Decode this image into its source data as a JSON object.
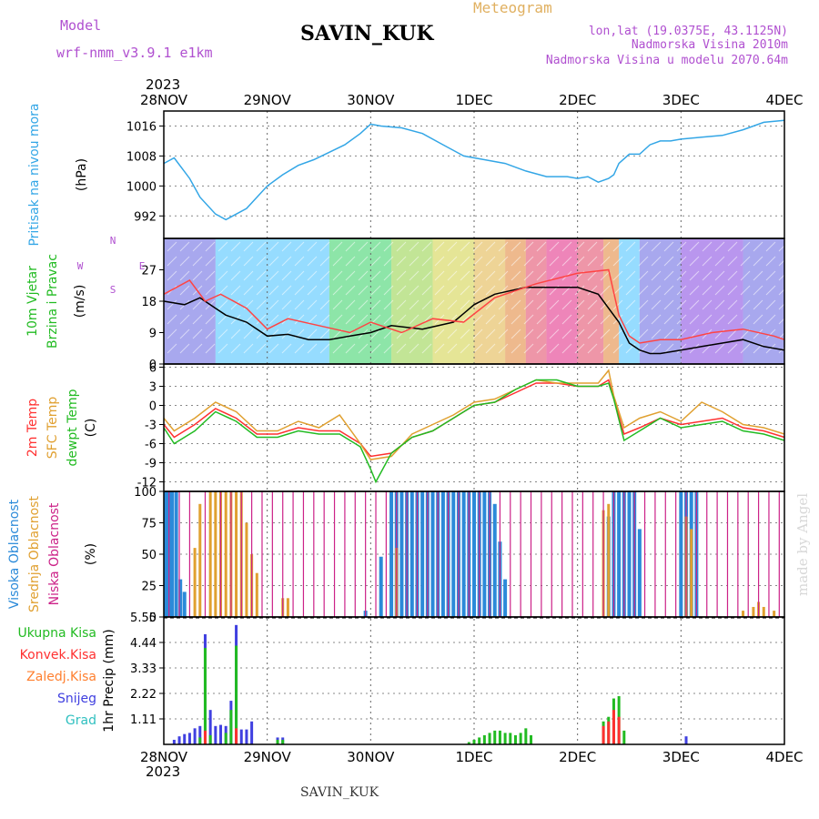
{
  "header": {
    "model_label": "Model",
    "model_name": "wrf-nmm_v3.9.1  e1km",
    "station": "SAVIN_KUK",
    "meteogram": "Meteogram",
    "lonlat": "lon,lat (19.0375E, 43.1125N)",
    "elevation": "Nadmorska Visina 2010m",
    "model_elevation": "Nadmorska Visina u modelu 2070.64m",
    "year": "2023",
    "footer_station": "SAVIN_KUK",
    "watermark": "made by Angel"
  },
  "colors": {
    "pressure": "#33a6e6",
    "wind_speed": "#000000",
    "wind_gust": "#ff4444",
    "temp_2m": "#ff3030",
    "temp_sfc": "#e0a030",
    "dewpoint": "#22bb22",
    "cloud_high": "#2b8ad9",
    "cloud_mid": "#e0a030",
    "cloud_low": "#cc2288",
    "precip_total": "#22bb22",
    "precip_conv": "#ff3030",
    "precip_freezing": "#ff8030",
    "precip_snow": "#4040e0",
    "precip_graupel": "#30c0c0"
  },
  "chart_data": [
    {
      "type": "line",
      "panel": "pressure",
      "ylabel_parts": [
        "Pritisak na nivou mora",
        "(hPa)"
      ],
      "x_ticks": [
        "28NOV",
        "29NOV",
        "30NOV",
        "1DEC",
        "2DEC",
        "3DEC",
        "4DEC"
      ],
      "x_range_days": [
        0,
        6
      ],
      "yticks": [
        "992",
        "1000",
        "1008",
        "1016"
      ],
      "ylim": [
        986,
        1020
      ],
      "series": [
        {
          "key": "pressure",
          "x": [
            0,
            0.1,
            0.25,
            0.35,
            0.5,
            0.6,
            0.8,
            1.0,
            1.15,
            1.3,
            1.45,
            1.6,
            1.75,
            1.9,
            2.0,
            2.1,
            2.3,
            2.5,
            2.7,
            2.9,
            3.1,
            3.3,
            3.5,
            3.7,
            3.9,
            4.0,
            4.1,
            4.2,
            4.3,
            4.35,
            4.4,
            4.5,
            4.6,
            4.7,
            4.8,
            4.9,
            5.0,
            5.2,
            5.4,
            5.6,
            5.8,
            6.0
          ],
          "values": [
            1006,
            1007.5,
            1002,
            997,
            992.5,
            991,
            994,
            1000,
            1003,
            1005.5,
            1007,
            1009,
            1011,
            1014,
            1016.5,
            1016,
            1015.5,
            1014,
            1011,
            1008,
            1007,
            1006,
            1004,
            1002.5,
            1002.5,
            1002,
            1002.5,
            1001,
            1002,
            1003,
            1006,
            1008.5,
            1008.5,
            1011,
            1012,
            1012,
            1012.5,
            1013,
            1013.5,
            1015,
            1017,
            1017.5
          ]
        }
      ]
    },
    {
      "type": "line",
      "panel": "wind",
      "ylabel_parts": [
        "10m Vjetar",
        "Brzina i Pravac",
        "(m/s)"
      ],
      "compass": [
        "N",
        "W",
        "E",
        "S"
      ],
      "yticks": [
        "0",
        "9",
        "18",
        "27"
      ],
      "ylim": [
        0,
        36
      ],
      "series": [
        {
          "key": "wind_speed",
          "x": [
            0,
            0.2,
            0.35,
            0.5,
            0.6,
            0.8,
            1.0,
            1.2,
            1.4,
            1.6,
            1.8,
            2.0,
            2.2,
            2.5,
            2.8,
            3.0,
            3.2,
            3.5,
            3.8,
            4.0,
            4.2,
            4.4,
            4.5,
            4.6,
            4.7,
            4.8,
            5.0,
            5.2,
            5.4,
            5.6,
            5.8,
            6.0
          ],
          "values": [
            18,
            17,
            19,
            16,
            14,
            12,
            8,
            8.5,
            7,
            7,
            8,
            9,
            11,
            10,
            12,
            17,
            20,
            22,
            22,
            22,
            20,
            12,
            6,
            4,
            3,
            3,
            4,
            5,
            6,
            7,
            5,
            4
          ]
        },
        {
          "key": "wind_gust",
          "x": [
            0,
            0.25,
            0.4,
            0.55,
            0.8,
            1.0,
            1.2,
            1.5,
            1.8,
            2.0,
            2.3,
            2.6,
            2.9,
            3.2,
            3.6,
            4.0,
            4.3,
            4.4,
            4.5,
            4.6,
            4.8,
            5.0,
            5.3,
            5.6,
            5.9,
            6.0
          ],
          "values": [
            20,
            24,
            18,
            20,
            16,
            10,
            13,
            11,
            9,
            12,
            9,
            13,
            12,
            19,
            23,
            26,
            27,
            14,
            8,
            6,
            7,
            7,
            9,
            10,
            8,
            7
          ]
        }
      ]
    },
    {
      "type": "line",
      "panel": "temperature",
      "ylabel_parts": [
        "2m Temp",
        "SFC Temp",
        "dewpt Temp",
        "(C)"
      ],
      "yticks": [
        "-12",
        "-9",
        "-6",
        "-3",
        "0",
        "3",
        "6"
      ],
      "ylim": [
        -13.5,
        6.5
      ],
      "series": [
        {
          "key": "temp_2m",
          "name": "2m Temp",
          "x": [
            0,
            0.1,
            0.3,
            0.5,
            0.7,
            0.9,
            1.1,
            1.3,
            1.5,
            1.7,
            1.9,
            2.0,
            2.2,
            2.4,
            2.6,
            2.8,
            3.0,
            3.2,
            3.4,
            3.6,
            3.8,
            4.0,
            4.2,
            4.3,
            4.35,
            4.45,
            4.6,
            4.8,
            5.0,
            5.2,
            5.4,
            5.6,
            5.8,
            6.0
          ],
          "values": [
            -3,
            -5,
            -3,
            -0.5,
            -2,
            -4.5,
            -4.5,
            -3.5,
            -4,
            -4,
            -6,
            -8,
            -7.5,
            -5,
            -4,
            -2,
            0,
            0.5,
            2,
            3.5,
            3.5,
            3,
            3,
            4,
            1,
            -4.5,
            -3.5,
            -2,
            -3,
            -2.5,
            -2,
            -3.5,
            -4,
            -5
          ]
        },
        {
          "key": "temp_sfc",
          "name": "SFC Temp",
          "x": [
            0,
            0.1,
            0.3,
            0.5,
            0.7,
            0.9,
            1.1,
            1.3,
            1.5,
            1.7,
            1.9,
            2.0,
            2.2,
            2.4,
            2.6,
            2.8,
            3.0,
            3.2,
            3.4,
            3.6,
            3.8,
            4.0,
            4.2,
            4.3,
            4.35,
            4.45,
            4.6,
            4.8,
            5.0,
            5.2,
            5.4,
            5.6,
            5.8,
            6.0
          ],
          "values": [
            -2,
            -4,
            -2,
            0.5,
            -1,
            -4,
            -4,
            -2.5,
            -3.5,
            -1.5,
            -6,
            -8.5,
            -8,
            -4.5,
            -3,
            -1.5,
            0.5,
            1,
            2.5,
            4,
            3.5,
            3.5,
            3.5,
            5.5,
            1.5,
            -3.5,
            -2,
            -1,
            -2.5,
            0.5,
            -1,
            -3,
            -3.5,
            -4.5
          ]
        },
        {
          "key": "dewpoint",
          "name": "dewpt Temp",
          "x": [
            0,
            0.1,
            0.3,
            0.5,
            0.7,
            0.9,
            1.1,
            1.3,
            1.5,
            1.7,
            1.9,
            2.0,
            2.05,
            2.2,
            2.4,
            2.6,
            2.8,
            3.0,
            3.2,
            3.4,
            3.6,
            3.8,
            4.0,
            4.2,
            4.3,
            4.35,
            4.45,
            4.6,
            4.8,
            5.0,
            5.2,
            5.4,
            5.6,
            5.8,
            6.0
          ],
          "values": [
            -3.5,
            -6,
            -4,
            -1,
            -2.5,
            -5,
            -5,
            -4,
            -4.5,
            -4.5,
            -6.5,
            -10,
            -12,
            -7.5,
            -5,
            -4,
            -2,
            0,
            0.5,
            2.5,
            4,
            4,
            3,
            3,
            3.5,
            1,
            -5.5,
            -4,
            -2,
            -3.5,
            -3,
            -2.5,
            -4,
            -4.5,
            -5.5
          ]
        }
      ]
    },
    {
      "type": "bar",
      "panel": "clouds",
      "ylabel_parts": [
        "Visoka Oblacnost",
        "Srednja Oblacnost",
        "Niska Oblacnost",
        "(%)"
      ],
      "yticks": [
        "0",
        "25",
        "50",
        "75",
        "100"
      ],
      "ylim": [
        0,
        100
      ],
      "series": [
        {
          "key": "cloud_high",
          "name": "Visoka Oblacnost",
          "x": [
            0.02,
            0.05,
            0.08,
            0.12,
            0.16,
            0.2,
            1.95,
            2.1,
            2.2,
            2.25,
            2.3,
            2.35,
            2.4,
            2.45,
            2.5,
            2.55,
            2.6,
            2.65,
            2.7,
            2.75,
            2.8,
            2.85,
            2.9,
            2.95,
            3.0,
            3.05,
            3.1,
            3.15,
            3.2,
            3.25,
            3.3,
            4.3,
            4.35,
            4.4,
            4.45,
            4.5,
            4.55,
            4.6,
            5.0,
            5.05,
            5.1,
            5.15
          ],
          "values": [
            100,
            100,
            100,
            100,
            30,
            20,
            5,
            48,
            100,
            100,
            100,
            100,
            100,
            100,
            100,
            100,
            100,
            100,
            100,
            100,
            100,
            100,
            100,
            100,
            100,
            100,
            100,
            100,
            90,
            60,
            30,
            80,
            100,
            100,
            100,
            100,
            100,
            70,
            100,
            100,
            100,
            100
          ]
        },
        {
          "key": "cloud_mid",
          "name": "Srednja Oblacnost",
          "x": [
            0.3,
            0.35,
            0.45,
            0.5,
            0.55,
            0.6,
            0.65,
            0.7,
            0.75,
            0.8,
            0.85,
            0.9,
            1.15,
            1.2,
            2.25,
            4.25,
            4.3,
            5.05,
            5.1,
            5.6,
            5.7,
            5.75,
            5.8,
            5.9
          ],
          "values": [
            55,
            90,
            100,
            100,
            100,
            100,
            100,
            100,
            100,
            75,
            50,
            35,
            15,
            15,
            55,
            85,
            90,
            80,
            70,
            5,
            8,
            12,
            8,
            5
          ]
        },
        {
          "key": "cloud_low",
          "name": "Niska Oblacnost",
          "x": [
            0.05,
            0.15,
            0.25,
            0.4,
            0.55,
            0.65,
            0.75,
            0.85,
            0.95,
            1.05,
            1.15,
            1.25,
            1.35,
            1.45,
            1.55,
            1.65,
            1.75,
            1.85,
            1.95,
            2.05,
            2.15,
            2.25,
            2.35,
            2.45,
            2.55,
            2.65,
            2.75,
            2.85,
            2.95,
            3.05,
            3.15,
            3.25,
            3.35,
            3.45,
            3.55,
            3.65,
            3.75,
            3.85,
            3.95,
            4.05,
            4.15,
            4.25,
            4.35,
            4.45,
            4.55,
            4.65,
            4.75,
            4.85,
            4.95,
            5.05,
            5.15,
            5.25,
            5.35,
            5.45,
            5.55,
            5.65,
            5.75,
            5.85,
            5.95
          ],
          "values": [
            100,
            100,
            100,
            100,
            100,
            100,
            100,
            100,
            100,
            100,
            100,
            100,
            100,
            100,
            100,
            100,
            100,
            100,
            100,
            100,
            100,
            100,
            100,
            100,
            100,
            100,
            100,
            100,
            100,
            100,
            100,
            100,
            100,
            100,
            100,
            100,
            100,
            100,
            100,
            100,
            100,
            100,
            100,
            100,
            100,
            100,
            100,
            100,
            100,
            100,
            100,
            100,
            100,
            100,
            100,
            100,
            100,
            100,
            100
          ]
        }
      ]
    },
    {
      "type": "bar",
      "panel": "precipitation",
      "ylabel_parts": [
        "1hr Precip (mm)"
      ],
      "legend": [
        "Ukupna Kisa",
        "Konvek.Kisa",
        "Zaledj.Kisa",
        "Snijeg",
        "Grad"
      ],
      "legend_keys": [
        "precip_total",
        "precip_conv",
        "precip_freezing",
        "precip_snow",
        "precip_graupel"
      ],
      "yticks": [
        "1.11",
        "2.22",
        "3.33",
        "4.44",
        "5.55"
      ],
      "ylim": [
        0,
        5.55
      ],
      "series": [
        {
          "key": "precip_snow",
          "name": "Snijeg",
          "x": [
            0.1,
            0.15,
            0.2,
            0.25,
            0.3,
            0.35,
            0.4,
            0.45,
            0.5,
            0.55,
            0.6,
            0.65,
            0.7,
            0.75,
            0.8,
            0.85,
            1.1,
            1.15,
            5.05
          ],
          "values": [
            0.2,
            0.35,
            0.45,
            0.5,
            0.7,
            0.8,
            4.8,
            1.5,
            0.8,
            0.85,
            0.8,
            1.9,
            5.2,
            0.65,
            0.65,
            1.0,
            0.3,
            0.3,
            0.35
          ]
        },
        {
          "key": "precip_total",
          "name": "Ukupna Kisa",
          "x": [
            0.35,
            0.4,
            0.45,
            0.6,
            0.65,
            0.7,
            1.1,
            1.15,
            2.95,
            3.0,
            3.05,
            3.1,
            3.15,
            3.2,
            3.25,
            3.3,
            3.35,
            3.4,
            3.45,
            3.5,
            3.55,
            4.25,
            4.3,
            4.35,
            4.4,
            4.45
          ],
          "values": [
            0.3,
            4.2,
            0.4,
            0.5,
            1.5,
            4.3,
            0.2,
            0.2,
            0.1,
            0.2,
            0.3,
            0.4,
            0.5,
            0.6,
            0.6,
            0.5,
            0.5,
            0.4,
            0.5,
            0.7,
            0.4,
            1.0,
            1.2,
            2.0,
            2.1,
            0.6
          ]
        },
        {
          "key": "precip_conv",
          "name": "Konvek.Kisa",
          "x": [
            0.4,
            0.7,
            4.25,
            4.3,
            4.35,
            4.4
          ],
          "values": [
            0.6,
            0.7,
            0.8,
            1.0,
            1.5,
            1.2
          ]
        }
      ]
    }
  ]
}
